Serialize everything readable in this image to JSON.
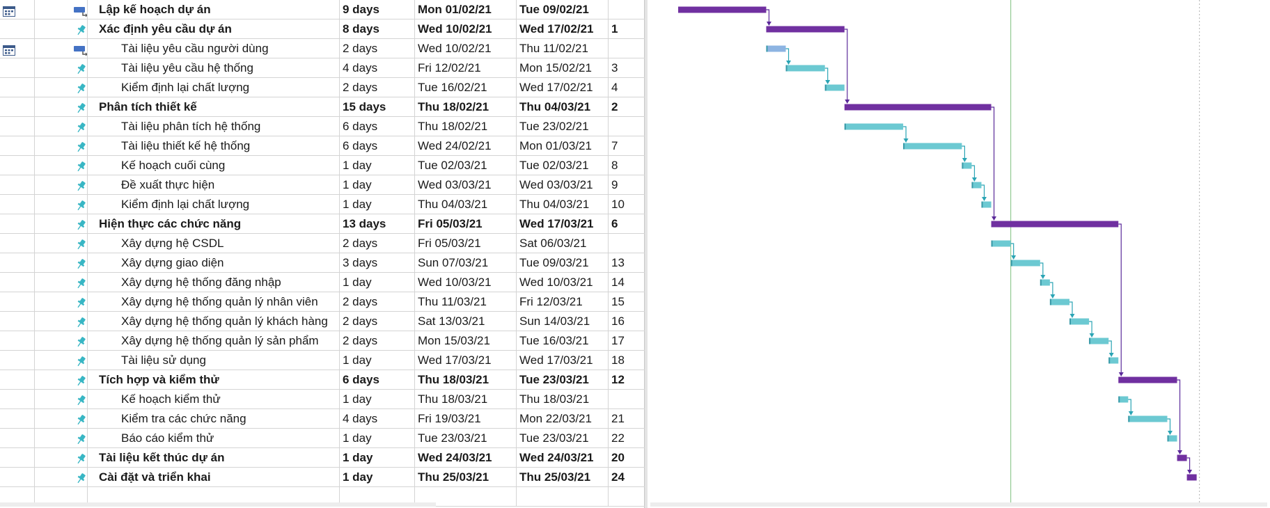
{
  "tasks": [
    {
      "name": "Lập kế hoạch dự án",
      "duration": "9 days",
      "start": "Mon 01/02/21",
      "finish": "Tue 09/02/21",
      "predecessors": "",
      "level": 0,
      "summary": true,
      "mode_icon": "auto-schedule-icon",
      "indicator": "calendar-icon",
      "color": "#7030A0"
    },
    {
      "name": "Xác định yêu cầu dự án",
      "duration": "8 days",
      "start": "Wed 10/02/21",
      "finish": "Wed 17/02/21",
      "predecessors": "1",
      "level": 0,
      "summary": true,
      "mode_icon": "manual-pin-icon",
      "indicator": "",
      "color": "#7030A0"
    },
    {
      "name": "Tài liệu yêu cầu người dùng",
      "duration": "2 days",
      "start": "Wed 10/02/21",
      "finish": "Thu 11/02/21",
      "predecessors": "",
      "level": 1,
      "summary": false,
      "mode_icon": "auto-schedule-icon",
      "indicator": "calendar-icon",
      "color": "#8DB4E2"
    },
    {
      "name": "Tài liệu yêu cầu hệ thống",
      "duration": "4 days",
      "start": "Fri 12/02/21",
      "finish": "Mon 15/02/21",
      "predecessors": "3",
      "level": 1,
      "summary": false,
      "mode_icon": "manual-pin-icon",
      "indicator": "",
      "color": "#6CC9D2"
    },
    {
      "name": "Kiểm định lại chất lượng",
      "duration": "2 days",
      "start": "Tue 16/02/21",
      "finish": "Wed 17/02/21",
      "predecessors": "4",
      "level": 1,
      "summary": false,
      "mode_icon": "manual-pin-icon",
      "indicator": "",
      "color": "#6CC9D2"
    },
    {
      "name": "Phân tích thiết kế",
      "duration": "15 days",
      "start": "Thu 18/02/21",
      "finish": "Thu 04/03/21",
      "predecessors": "2",
      "level": 0,
      "summary": true,
      "mode_icon": "manual-pin-icon",
      "indicator": "",
      "color": "#7030A0"
    },
    {
      "name": "Tài liệu phân tích hệ thống",
      "duration": "6 days",
      "start": "Thu 18/02/21",
      "finish": "Tue 23/02/21",
      "predecessors": "",
      "level": 1,
      "summary": false,
      "mode_icon": "manual-pin-icon",
      "indicator": "",
      "color": "#6CC9D2"
    },
    {
      "name": "Tài liệu thiết kế hệ thống",
      "duration": "6 days",
      "start": "Wed 24/02/21",
      "finish": "Mon 01/03/21",
      "predecessors": "7",
      "level": 1,
      "summary": false,
      "mode_icon": "manual-pin-icon",
      "indicator": "",
      "color": "#6CC9D2"
    },
    {
      "name": "Kế hoạch cuối cùng",
      "duration": "1 day",
      "start": "Tue 02/03/21",
      "finish": "Tue 02/03/21",
      "predecessors": "8",
      "level": 1,
      "summary": false,
      "mode_icon": "manual-pin-icon",
      "indicator": "",
      "color": "#6CC9D2"
    },
    {
      "name": "Đề xuất thực hiện",
      "duration": "1 day",
      "start": "Wed 03/03/21",
      "finish": "Wed 03/03/21",
      "predecessors": "9",
      "level": 1,
      "summary": false,
      "mode_icon": "manual-pin-icon",
      "indicator": "",
      "color": "#6CC9D2"
    },
    {
      "name": "Kiểm định lại chất lượng",
      "duration": "1 day",
      "start": "Thu 04/03/21",
      "finish": "Thu 04/03/21",
      "predecessors": "10",
      "level": 1,
      "summary": false,
      "mode_icon": "manual-pin-icon",
      "indicator": "",
      "color": "#6CC9D2"
    },
    {
      "name": "Hiện thực các chức năng",
      "duration": "13 days",
      "start": "Fri 05/03/21",
      "finish": "Wed 17/03/21",
      "predecessors": "6",
      "level": 0,
      "summary": true,
      "mode_icon": "manual-pin-icon",
      "indicator": "",
      "color": "#7030A0"
    },
    {
      "name": "Xây dựng hệ CSDL",
      "duration": "2 days",
      "start": "Fri 05/03/21",
      "finish": "Sat 06/03/21",
      "predecessors": "",
      "level": 1,
      "summary": false,
      "mode_icon": "manual-pin-icon",
      "indicator": "",
      "color": "#6CC9D2"
    },
    {
      "name": "Xây dựng giao diện",
      "duration": "3 days",
      "start": "Sun 07/03/21",
      "finish": "Tue 09/03/21",
      "predecessors": "13",
      "level": 1,
      "summary": false,
      "mode_icon": "manual-pin-icon",
      "indicator": "",
      "color": "#6CC9D2"
    },
    {
      "name": "Xây dựng hệ thống đăng nhập",
      "duration": "1 day",
      "start": "Wed 10/03/21",
      "finish": "Wed 10/03/21",
      "predecessors": "14",
      "level": 1,
      "summary": false,
      "mode_icon": "manual-pin-icon",
      "indicator": "",
      "color": "#6CC9D2"
    },
    {
      "name": "Xây dựng hệ thống quản lý nhân viên",
      "duration": "2 days",
      "start": "Thu 11/03/21",
      "finish": "Fri 12/03/21",
      "predecessors": "15",
      "level": 1,
      "summary": false,
      "mode_icon": "manual-pin-icon",
      "indicator": "",
      "color": "#6CC9D2"
    },
    {
      "name": "Xây dựng hệ thống quản lý khách hàng",
      "duration": "2 days",
      "start": "Sat 13/03/21",
      "finish": "Sun 14/03/21",
      "predecessors": "16",
      "level": 1,
      "summary": false,
      "mode_icon": "manual-pin-icon",
      "indicator": "",
      "color": "#6CC9D2"
    },
    {
      "name": "Xây dựng hệ thống quản lý sản phẩm",
      "duration": "2 days",
      "start": "Mon 15/03/21",
      "finish": "Tue 16/03/21",
      "predecessors": "17",
      "level": 1,
      "summary": false,
      "mode_icon": "manual-pin-icon",
      "indicator": "",
      "color": "#6CC9D2"
    },
    {
      "name": "Tài liệu sử dụng",
      "duration": "1 day",
      "start": "Wed 17/03/21",
      "finish": "Wed 17/03/21",
      "predecessors": "18",
      "level": 1,
      "summary": false,
      "mode_icon": "manual-pin-icon",
      "indicator": "",
      "color": "#6CC9D2"
    },
    {
      "name": "Tích hợp và kiểm thử",
      "duration": "6 days",
      "start": "Thu 18/03/21",
      "finish": "Tue 23/03/21",
      "predecessors": "12",
      "level": 0,
      "summary": true,
      "mode_icon": "manual-pin-icon",
      "indicator": "",
      "color": "#7030A0"
    },
    {
      "name": "Kế hoạch kiểm thử",
      "duration": "1 day",
      "start": "Thu 18/03/21",
      "finish": "Thu 18/03/21",
      "predecessors": "",
      "level": 1,
      "summary": false,
      "mode_icon": "manual-pin-icon",
      "indicator": "",
      "color": "#6CC9D2"
    },
    {
      "name": "Kiểm tra các chức năng",
      "duration": "4 days",
      "start": "Fri 19/03/21",
      "finish": "Mon 22/03/21",
      "predecessors": "21",
      "level": 1,
      "summary": false,
      "mode_icon": "manual-pin-icon",
      "indicator": "",
      "color": "#6CC9D2"
    },
    {
      "name": "Báo cáo kiểm thử",
      "duration": "1 day",
      "start": "Tue 23/03/21",
      "finish": "Tue 23/03/21",
      "predecessors": "22",
      "level": 1,
      "summary": false,
      "mode_icon": "manual-pin-icon",
      "indicator": "",
      "color": "#6CC9D2"
    },
    {
      "name": "Tài liệu kết thúc dự án",
      "duration": "1 day",
      "start": "Wed 24/03/21",
      "finish": "Wed 24/03/21",
      "predecessors": "20",
      "level": 0,
      "summary": true,
      "mode_icon": "manual-pin-icon",
      "indicator": "",
      "color": "#7030A0"
    },
    {
      "name": "Cài đặt và triển khai",
      "duration": "1 day",
      "start": "Thu 25/03/21",
      "finish": "Thu 25/03/21",
      "predecessors": "24",
      "level": 0,
      "summary": true,
      "mode_icon": "manual-pin-icon",
      "indicator": "",
      "color": "#7030A0"
    }
  ],
  "colors": {
    "summary_bar": "#7030A0",
    "task_bar": "#6CC9D2",
    "task_bar_auto": "#8DB4E2",
    "link_summary": "#5B2A9A",
    "link_task": "#2AA4B4",
    "today_line": "#7CC07C",
    "status_line": "#b0b0b0",
    "mode_auto": "#4472C4",
    "mode_manual": "#38B6C4"
  }
}
